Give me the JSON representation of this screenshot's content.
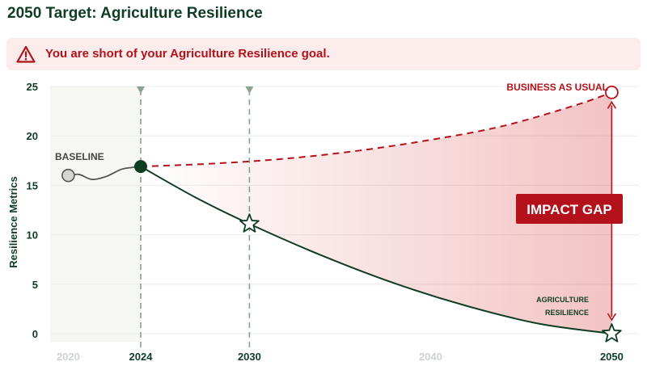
{
  "title": "2050 Target: Agriculture Resilience",
  "alert": {
    "text": "You are short of your Agriculture Resilience goal.",
    "icon": "warning-triangle-icon",
    "color": "#b3121a",
    "background": "#fdecec"
  },
  "colors": {
    "target": "#0f3d24",
    "bau": "#b3121a",
    "baseline_shade": "#f6f7f2",
    "gap_label_bg": "#b3121a",
    "marker_line": "#8aa292"
  },
  "chart_data": {
    "type": "line",
    "title": "2050 Target: Agriculture Resilience",
    "xlabel": "",
    "ylabel": "Resilience Metrics",
    "xlim": [
      2019,
      2051.5
    ],
    "ylim": [
      0,
      25
    ],
    "yticks": [
      "0",
      "5",
      "10",
      "15",
      "20",
      "25"
    ],
    "xticks": [
      {
        "label": "2020",
        "value": 2020,
        "emphasis": false
      },
      {
        "label": "2024",
        "value": 2024,
        "emphasis": true
      },
      {
        "label": "2030",
        "value": 2030,
        "emphasis": true
      },
      {
        "label": "2040",
        "value": 2040,
        "emphasis": false
      },
      {
        "label": "2050",
        "value": 2050,
        "emphasis": true
      }
    ],
    "grid": true,
    "baseline_period": [
      2019,
      2024
    ],
    "milestone_years": [
      2024,
      2030
    ],
    "series": [
      {
        "name": "BASELINE",
        "style": "solid",
        "x": [
          2020,
          2020.6,
          2021.3,
          2022.1,
          2022.9,
          2023.5,
          2024
        ],
        "y": [
          16,
          16.1,
          15.6,
          15.9,
          16.6,
          16.8,
          16.9
        ]
      },
      {
        "name": "BUSINESS AS USUAL",
        "style": "dashed",
        "x": [
          2024,
          2028,
          2032,
          2036,
          2040,
          2044,
          2048,
          2050
        ],
        "y": [
          16.9,
          17.2,
          17.7,
          18.5,
          19.6,
          21.0,
          23.1,
          24.4
        ]
      },
      {
        "name": "AGRICULTURE RESILIENCE",
        "style": "solid",
        "x": [
          2024,
          2027,
          2030,
          2034,
          2038,
          2042,
          2046,
          2050
        ],
        "y": [
          16.9,
          13.8,
          11.1,
          7.9,
          5.1,
          2.8,
          1.0,
          0
        ]
      }
    ],
    "markers": [
      {
        "x": 2020,
        "y": 16,
        "shape": "circle-grey"
      },
      {
        "x": 2024,
        "y": 16.9,
        "shape": "circle-filled"
      },
      {
        "x": 2030,
        "y": 11.1,
        "shape": "star"
      },
      {
        "x": 2050,
        "y": 0,
        "shape": "star"
      },
      {
        "x": 2050,
        "y": 24.4,
        "shape": "circle-open"
      }
    ],
    "annotations": {
      "baseline": "BASELINE",
      "bau": "BUSINESS AS USUAL",
      "target_line1": "AGRICULTURE",
      "target_line2": "RESILIENCE",
      "gap": "IMPACT GAP"
    }
  }
}
